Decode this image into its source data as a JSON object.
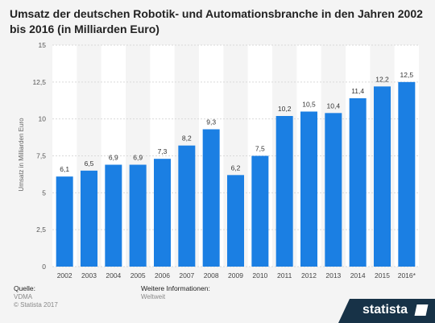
{
  "title": "Umsatz der deutschen Robotik- und Automationsbranche in den Jahren 2002 bis 2016 (in Milliarden Euro)",
  "colors": {
    "bar": "#1b7fe3",
    "band": "#ffffff",
    "grid": "#d9d9d9",
    "brand_bar": "#173247"
  },
  "footer": {
    "source_label": "Quelle:",
    "source_lines": [
      "VDMA",
      "© Statista 2017"
    ],
    "info_label": "Weitere Informationen:",
    "info_value": "Weltweit",
    "brand": "statista"
  },
  "chart_data": {
    "type": "bar",
    "title": "Umsatz der deutschen Robotik- und Automationsbranche in den Jahren 2002 bis 2016 (in Milliarden Euro)",
    "ylabel": "Umsatz in Milliarden Euro",
    "xlabel": "",
    "categories": [
      "2002",
      "2003",
      "2004",
      "2005",
      "2006",
      "2007",
      "2008",
      "2009",
      "2010",
      "2011",
      "2012",
      "2013",
      "2014",
      "2015",
      "2016*"
    ],
    "values": [
      6.1,
      6.5,
      6.9,
      6.9,
      7.3,
      8.2,
      9.3,
      6.2,
      7.5,
      10.2,
      10.5,
      10.4,
      11.4,
      12.2,
      12.5
    ],
    "value_labels": [
      "6,1",
      "6,5",
      "6,9",
      "6,9",
      "7,3",
      "8,2",
      "9,3",
      "6,2",
      "7,5",
      "10,2",
      "10,5",
      "10,4",
      "11,4",
      "12,2",
      "12,5"
    ],
    "ylim": [
      0,
      15
    ],
    "yticks": [
      0,
      2.5,
      5,
      7.5,
      10,
      12.5,
      15
    ],
    "ytick_labels": [
      "0",
      "2,5",
      "5",
      "7,5",
      "10",
      "12,5",
      "15"
    ],
    "grid": true,
    "legend": "none"
  }
}
